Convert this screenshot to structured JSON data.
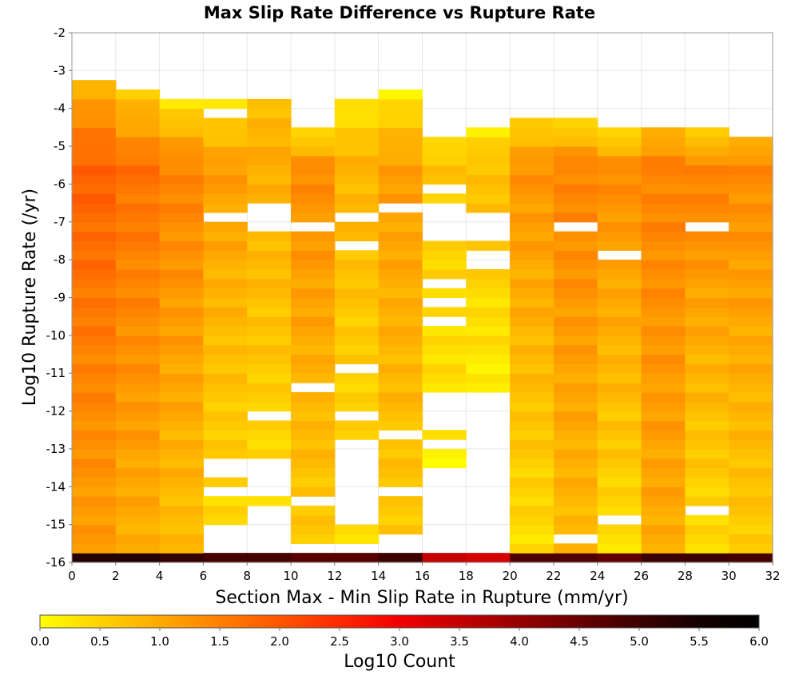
{
  "chart_data": {
    "type": "heatmap",
    "title": "Max Slip Rate Difference vs Rupture Rate",
    "xlabel": "Section Max - Min Slip Rate in Rupture (mm/yr)",
    "ylabel": "Log10 Rupture Rate (/yr)",
    "xlim": [
      0,
      32
    ],
    "ylim": [
      -16,
      -2
    ],
    "x_ticks": [
      "0",
      "2",
      "4",
      "6",
      "8",
      "10",
      "12",
      "14",
      "16",
      "18",
      "20",
      "22",
      "24",
      "26",
      "28",
      "30",
      "32"
    ],
    "y_ticks": [
      "-2",
      "-3",
      "-4",
      "-5",
      "-6",
      "-7",
      "-8",
      "-9",
      "-10",
      "-11",
      "-12",
      "-13",
      "-14",
      "-15",
      "-16"
    ],
    "x_bin_width": 2,
    "y_bin_height": 0.25,
    "grid": true,
    "colorbar": {
      "label": "Log10 Count",
      "range": [
        0,
        6
      ],
      "ticks": [
        "0.0",
        "0.5",
        "1.0",
        "1.5",
        "2.0",
        "2.5",
        "3.0",
        "3.5",
        "4.0",
        "4.5",
        "5.0",
        "5.5",
        "6.0"
      ],
      "colors": [
        "#ffff00",
        "#ffd200",
        "#ffaa00",
        "#ff7f00",
        "#ff5500",
        "#ff2a00",
        "#f00000",
        "#c30000",
        "#960000",
        "#690000",
        "#3c0000",
        "#140000",
        "#000000"
      ]
    },
    "columns": [
      {
        "x_start": 0,
        "bottom_value": 5.3,
        "top": -3.25,
        "holes": [],
        "high": -5.5,
        "low": -14.8,
        "peak": 1.9,
        "top_value": 0.9,
        "bottom_end": 1.2
      },
      {
        "x_start": 2,
        "bottom_value": 5.3,
        "top": -3.5,
        "holes": [],
        "high": -5.5,
        "low": -14.8,
        "peak": 1.7,
        "top_value": 0.6,
        "bottom_end": 1.0
      },
      {
        "x_start": 4,
        "bottom_value": 5.1,
        "top": -3.75,
        "holes": [],
        "high": -5.5,
        "low": -14.8,
        "peak": 1.5,
        "top_value": 0.3,
        "bottom_end": 0.8
      },
      {
        "x_start": 6,
        "bottom_value": 4.9,
        "top": -3.75,
        "holes": [
          [
            -4.0,
            -4.25
          ],
          [
            -6.75,
            -7.0
          ],
          [
            -13.25,
            -13.75
          ],
          [
            -14.0,
            -14.25
          ],
          [
            -15.0,
            -16.0
          ]
        ],
        "high": -5.5,
        "low": -15.0,
        "peak": 1.2,
        "top_value": 0.3,
        "bottom_end": 0.4
      },
      {
        "x_start": 8,
        "bottom_value": 4.9,
        "top": -3.75,
        "holes": [
          [
            -6.5,
            -7.25
          ],
          [
            -12.0,
            -12.25
          ],
          [
            -13.25,
            -14.25
          ],
          [
            -14.5,
            -16.0
          ]
        ],
        "high": -5.5,
        "low": -14.5,
        "peak": 1.0,
        "top_value": 0.8,
        "bottom_end": 0.4
      },
      {
        "x_start": 10,
        "bottom_value": 4.7,
        "top": -4.5,
        "holes": [
          [
            -7.0,
            -7.25
          ],
          [
            -11.25,
            -11.5
          ],
          [
            -14.25,
            -14.5
          ],
          [
            -15.5,
            -16.0
          ]
        ],
        "high": -5.5,
        "low": -15.5,
        "peak": 1.4,
        "top_value": 0.3,
        "bottom_end": 0.6
      },
      {
        "x_start": 12,
        "bottom_value": 4.7,
        "top": -3.75,
        "holes": [
          [
            -6.75,
            -7.0
          ],
          [
            -7.5,
            -7.75
          ],
          [
            -10.75,
            -11.0
          ],
          [
            -12.0,
            -12.25
          ],
          [
            -12.75,
            -15.0
          ],
          [
            -15.5,
            -16.0
          ]
        ],
        "high": -5.5,
        "low": -15.5,
        "peak": 0.9,
        "top_value": 0.3,
        "bottom_end": 0.3
      },
      {
        "x_start": 14,
        "bottom_value": 5.0,
        "top": -3.5,
        "holes": [
          [
            -6.5,
            -6.75
          ],
          [
            -12.5,
            -12.75
          ],
          [
            -14.0,
            -14.25
          ],
          [
            -15.25,
            -16.0
          ]
        ],
        "high": -5.5,
        "low": -15.25,
        "peak": 1.2,
        "top_value": 0.2,
        "bottom_end": 0.6
      },
      {
        "x_start": 16,
        "bottom_value": 3.5,
        "top": -4.75,
        "holes": [
          [
            -6.0,
            -6.25
          ],
          [
            -6.5,
            -7.5
          ],
          [
            -8.5,
            -8.75
          ],
          [
            -9.0,
            -9.25
          ],
          [
            -9.5,
            -9.75
          ],
          [
            -11.5,
            -12.5
          ],
          [
            -12.75,
            -13.0
          ],
          [
            -13.5,
            -16.0
          ]
        ],
        "high": -5.5,
        "low": -13.5,
        "peak": 0.7,
        "top_value": 0.3,
        "bottom_end": 0.2
      },
      {
        "x_start": 18,
        "bottom_value": 3.3,
        "top": -4.5,
        "holes": [
          [
            -6.75,
            -7.5
          ],
          [
            -7.75,
            -8.25
          ],
          [
            -11.5,
            -16.0
          ]
        ],
        "high": -5.5,
        "low": -11.5,
        "peak": 0.8,
        "top_value": 0.2,
        "bottom_end": 0.2
      },
      {
        "x_start": 20,
        "bottom_value": 4.8,
        "top": -4.25,
        "holes": [],
        "high": -5.5,
        "low": -15.5,
        "peak": 1.3,
        "top_value": 0.5,
        "bottom_end": 0.4
      },
      {
        "x_start": 22,
        "bottom_value": 4.8,
        "top": -4.25,
        "holes": [
          [
            -7.0,
            -7.25
          ],
          [
            -15.25,
            -15.5
          ]
        ],
        "high": -5.5,
        "low": -15.5,
        "peak": 1.5,
        "top_value": 0.3,
        "bottom_end": 0.8
      },
      {
        "x_start": 24,
        "bottom_value": 4.6,
        "top": -4.5,
        "holes": [
          [
            -7.75,
            -8.0
          ],
          [
            -14.75,
            -15.0
          ],
          [
            -15.75,
            -16.0
          ]
        ],
        "high": -5.5,
        "low": -15.5,
        "peak": 1.4,
        "top_value": 0.3,
        "bottom_end": 0.4
      },
      {
        "x_start": 26,
        "bottom_value": 5.0,
        "top": -4.5,
        "holes": [],
        "high": -5.5,
        "low": -15.5,
        "peak": 1.5,
        "top_value": 0.8,
        "bottom_end": 1.0
      },
      {
        "x_start": 28,
        "bottom_value": 5.0,
        "top": -4.5,
        "holes": [
          [
            -7.0,
            -7.25
          ],
          [
            -14.5,
            -14.75
          ]
        ],
        "high": -5.5,
        "low": -15.5,
        "peak": 1.5,
        "top_value": 0.3,
        "bottom_end": 0.4
      },
      {
        "x_start": 30,
        "bottom_value": 4.9,
        "top": -4.75,
        "holes": [],
        "high": -5.5,
        "low": -15.5,
        "peak": 1.4,
        "top_value": 0.8,
        "bottom_end": 0.6
      }
    ]
  }
}
